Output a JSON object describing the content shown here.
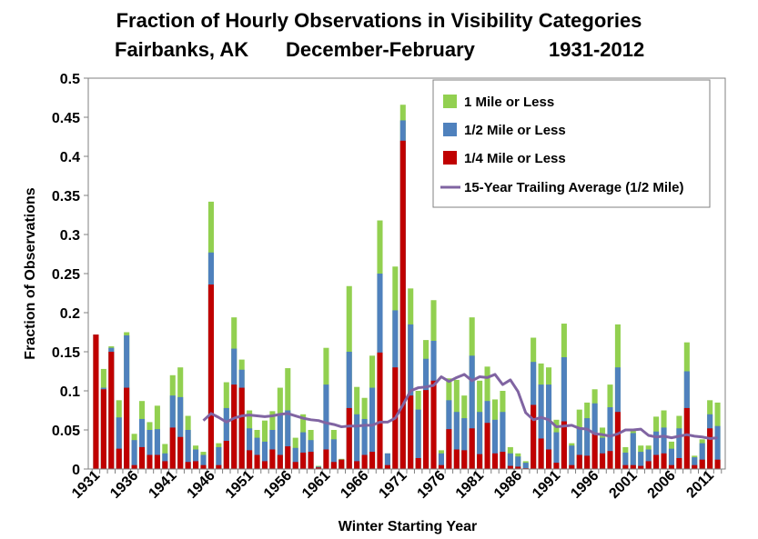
{
  "chart_data": {
    "type": "bar",
    "title_line1": "Fraction of Hourly Observations in Visibility Categories",
    "title_line2_location": "Fairbanks,  AK",
    "title_line2_season": "December-February",
    "title_line2_period": "1931-2012",
    "xlabel": "Winter Starting Year",
    "ylabel": "Fraction of Observations",
    "ylim": [
      0,
      0.5
    ],
    "yticks": [
      "0",
      "0.05",
      "0.1",
      "0.15",
      "0.2",
      "0.25",
      "0.3",
      "0.35",
      "0.4",
      "0.45",
      "0.5"
    ],
    "xtick_years": [
      1931,
      1936,
      1941,
      1946,
      1951,
      1956,
      1961,
      1966,
      1971,
      1976,
      1981,
      1986,
      1991,
      1996,
      2001,
      2006,
      2011
    ],
    "legend_position": "top-right",
    "colors": {
      "mile": "#92d050",
      "half": "#4f81bd",
      "quarter": "#c00000",
      "avg": "#8064a2"
    },
    "years": [
      1931,
      1932,
      1933,
      1934,
      1935,
      1936,
      1937,
      1938,
      1939,
      1940,
      1941,
      1942,
      1943,
      1944,
      1945,
      1946,
      1947,
      1948,
      1949,
      1950,
      1951,
      1952,
      1953,
      1954,
      1955,
      1956,
      1957,
      1958,
      1959,
      1960,
      1961,
      1962,
      1963,
      1964,
      1965,
      1966,
      1967,
      1968,
      1969,
      1970,
      1971,
      1972,
      1973,
      1974,
      1975,
      1976,
      1977,
      1978,
      1979,
      1980,
      1981,
      1982,
      1983,
      1984,
      1985,
      1986,
      1987,
      1988,
      1989,
      1990,
      1991,
      1992,
      1993,
      1994,
      1995,
      1996,
      1997,
      1998,
      1999,
      2000,
      2001,
      2002,
      2003,
      2004,
      2005,
      2006,
      2007,
      2008,
      2009,
      2010,
      2011,
      2012
    ],
    "series": [
      {
        "name": "1 Mile or Less",
        "key": "mile",
        "values": [
          0.172,
          0.128,
          0.157,
          0.088,
          0.175,
          0.045,
          0.087,
          0.06,
          0.081,
          0.032,
          0.12,
          0.13,
          0.068,
          0.03,
          0.022,
          0.342,
          0.033,
          0.111,
          0.194,
          0.14,
          0.075,
          0.05,
          0.062,
          0.074,
          0.104,
          0.129,
          0.04,
          0.07,
          0.05,
          0.004,
          0.155,
          0.05,
          0.013,
          0.234,
          0.105,
          0.091,
          0.145,
          0.318,
          0.02,
          0.259,
          0.466,
          0.231,
          0.1,
          0.165,
          0.216,
          0.024,
          0.116,
          0.114,
          0.094,
          0.194,
          0.113,
          0.131,
          0.089,
          0.1,
          0.028,
          0.02,
          0.01,
          0.168,
          0.135,
          0.13,
          0.063,
          0.186,
          0.033,
          0.076,
          0.085,
          0.102,
          0.053,
          0.108,
          0.185,
          0.028,
          0.05,
          0.03,
          0.03,
          0.067,
          0.075,
          0.035,
          0.068,
          0.162,
          0.017,
          0.038,
          0.088,
          0.085
        ]
      },
      {
        "name": "1/2 Mile or Less",
        "key": "half",
        "values": [
          0.172,
          0.104,
          0.155,
          0.066,
          0.171,
          0.037,
          0.064,
          0.05,
          0.051,
          0.02,
          0.094,
          0.092,
          0.05,
          0.025,
          0.018,
          0.277,
          0.028,
          0.078,
          0.154,
          0.127,
          0.052,
          0.04,
          0.035,
          0.05,
          0.07,
          0.075,
          0.027,
          0.047,
          0.037,
          0.003,
          0.108,
          0.038,
          0.012,
          0.15,
          0.07,
          0.064,
          0.104,
          0.25,
          0.02,
          0.203,
          0.446,
          0.185,
          0.076,
          0.141,
          0.164,
          0.02,
          0.088,
          0.073,
          0.065,
          0.145,
          0.073,
          0.087,
          0.063,
          0.073,
          0.02,
          0.016,
          0.008,
          0.137,
          0.108,
          0.108,
          0.047,
          0.143,
          0.03,
          0.052,
          0.065,
          0.084,
          0.04,
          0.079,
          0.13,
          0.021,
          0.046,
          0.022,
          0.025,
          0.048,
          0.053,
          0.026,
          0.052,
          0.125,
          0.015,
          0.033,
          0.07,
          0.055
        ]
      },
      {
        "name": "1/4 Mile or Less",
        "key": "quarter",
        "values": [
          0.172,
          0.102,
          0.15,
          0.026,
          0.104,
          0.005,
          0.028,
          0.018,
          0.018,
          0.01,
          0.053,
          0.041,
          0.009,
          0.01,
          0.005,
          0.236,
          0.005,
          0.036,
          0.108,
          0.104,
          0.024,
          0.018,
          0.01,
          0.025,
          0.018,
          0.029,
          0.009,
          0.021,
          0.022,
          0.002,
          0.025,
          0.009,
          0.012,
          0.078,
          0.01,
          0.018,
          0.022,
          0.149,
          0.005,
          0.13,
          0.42,
          0.094,
          0.014,
          0.101,
          0.113,
          0.005,
          0.051,
          0.025,
          0.024,
          0.052,
          0.019,
          0.059,
          0.02,
          0.022,
          0.004,
          0.003,
          0.001,
          0.082,
          0.039,
          0.025,
          0.008,
          0.061,
          0.005,
          0.018,
          0.017,
          0.046,
          0.02,
          0.023,
          0.073,
          0.005,
          0.005,
          0.004,
          0.01,
          0.018,
          0.02,
          0.005,
          0.014,
          0.078,
          0.005,
          0.012,
          0.052,
          0.012
        ]
      }
    ],
    "average_line": {
      "name": "15-Year Trailing Average (1/2 Mile)",
      "start_year": 1945,
      "values": [
        0.062,
        0.071,
        0.066,
        0.06,
        0.065,
        0.068,
        0.069,
        0.068,
        0.067,
        0.068,
        0.07,
        0.071,
        0.068,
        0.065,
        0.063,
        0.062,
        0.059,
        0.057,
        0.054,
        0.055,
        0.055,
        0.056,
        0.056,
        0.06,
        0.06,
        0.065,
        0.082,
        0.1,
        0.104,
        0.105,
        0.107,
        0.118,
        0.112,
        0.117,
        0.121,
        0.113,
        0.118,
        0.117,
        0.121,
        0.108,
        0.114,
        0.099,
        0.072,
        0.063,
        0.066,
        0.063,
        0.054,
        0.055,
        0.056,
        0.052,
        0.051,
        0.045,
        0.044,
        0.042,
        0.045,
        0.05,
        0.05,
        0.051,
        0.043,
        0.041,
        0.042,
        0.04,
        0.042,
        0.044,
        0.042,
        0.041,
        0.039,
        0.04
      ]
    }
  }
}
